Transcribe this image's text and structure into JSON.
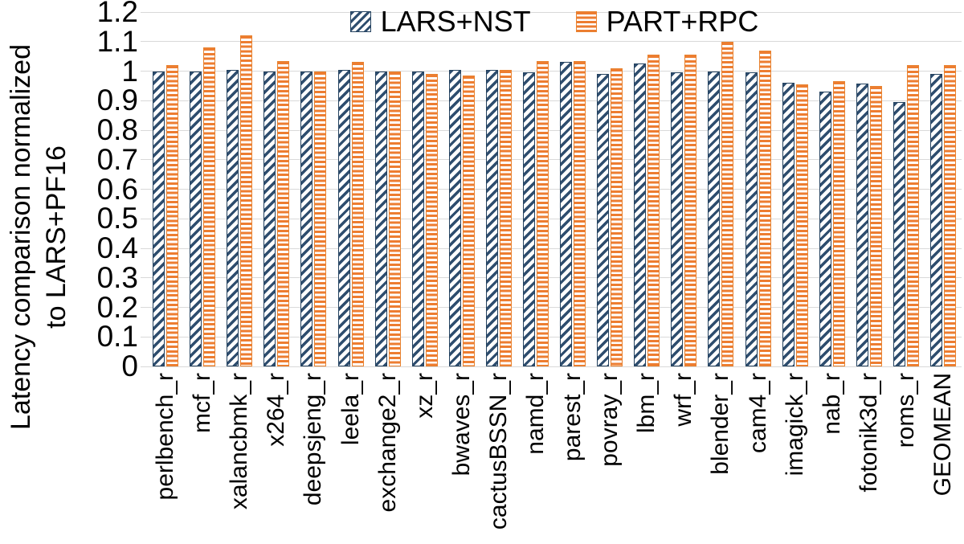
{
  "chart_data": {
    "type": "bar",
    "title": "",
    "ylabel": "Latency comparison normalized to LARS+PF16",
    "ylabel_lines": [
      "Latency comparison normalized",
      "to LARS+PF16"
    ],
    "xlabel": "",
    "ylim": [
      0,
      1.2
    ],
    "ytick_step": 0.1,
    "ytick_labels": [
      "0",
      "0.1",
      "0.2",
      "0.3",
      "0.4",
      "0.5",
      "0.6",
      "0.7",
      "0.8",
      "0.9",
      "1",
      "1.1",
      "1.2"
    ],
    "grid": true,
    "legend_position": "top",
    "categories": [
      "perlbench_r",
      "mcf_r",
      "xalancbmk_r",
      "x264_r",
      "deepsjeng_r",
      "leela_r",
      "exchange2_r",
      "xz_r",
      "bwaves_r",
      "cactusBSSN_r",
      "namd_r",
      "parest_r",
      "povray_r",
      "lbm_r",
      "wrf_r",
      "blender_r",
      "cam4_r",
      "imagick_r",
      "nab_r",
      "fotonik3d_r",
      "roms_r",
      "GEOMEAN"
    ],
    "series": [
      {
        "name": "LARS+NST",
        "color": "#2E4D6E",
        "hatch": "diagonal",
        "values": [
          1.0,
          1.0,
          1.005,
          1.0,
          1.0,
          1.005,
          1.0,
          1.0,
          1.005,
          1.005,
          0.995,
          1.03,
          0.99,
          1.025,
          0.995,
          1.0,
          0.995,
          0.96,
          0.93,
          0.958,
          0.895,
          0.99
        ]
      },
      {
        "name": "PART+RPC",
        "color": "#ED7D31",
        "hatch": "horizontal",
        "values": [
          1.02,
          1.08,
          1.12,
          1.035,
          1.0,
          1.03,
          1.0,
          0.99,
          0.985,
          1.005,
          1.035,
          1.035,
          1.01,
          1.055,
          1.055,
          1.1,
          1.07,
          0.955,
          0.965,
          0.95,
          1.02,
          1.02
        ]
      }
    ],
    "gridline_color": "#d9d9d9"
  }
}
